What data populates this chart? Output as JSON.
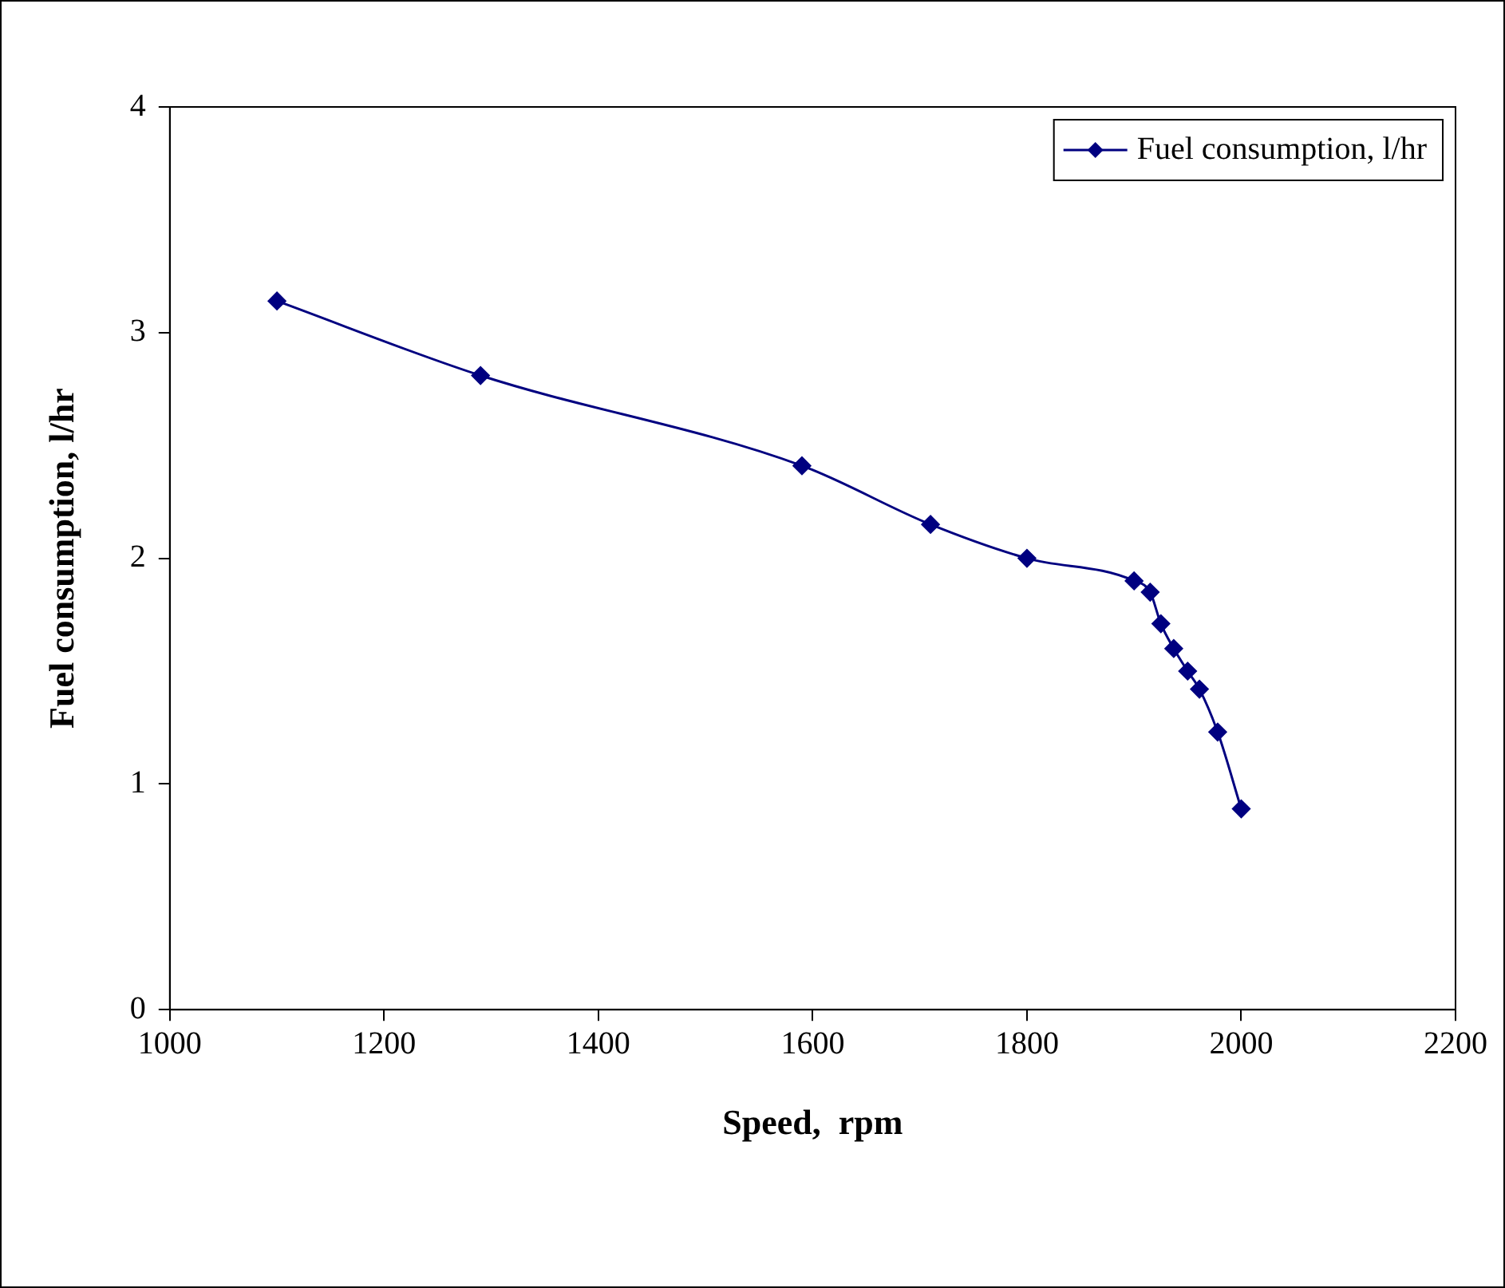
{
  "chart_data": {
    "type": "line",
    "xlabel": "Speed,  rpm",
    "ylabel": "Fuel consumption, l/hr",
    "x": [
      1100,
      1290,
      1590,
      1710,
      1800,
      1900,
      1915,
      1925,
      1937,
      1950,
      1961,
      1978,
      2000
    ],
    "series": [
      {
        "name": "Fuel consumption, l/hr",
        "color": "#000080",
        "values": [
          3.14,
          2.81,
          2.41,
          2.15,
          2.0,
          1.9,
          1.85,
          1.71,
          1.6,
          1.5,
          1.42,
          1.23,
          0.89
        ]
      }
    ],
    "xlim": [
      1000,
      2200
    ],
    "xticks": [
      1000,
      1200,
      1400,
      1600,
      1800,
      2000,
      2200
    ],
    "ylim": [
      0,
      4
    ],
    "yticks": [
      0,
      1,
      2,
      3,
      4
    ],
    "grid": false,
    "legend": "top right",
    "marker": "diamond",
    "line_style": "solid"
  }
}
